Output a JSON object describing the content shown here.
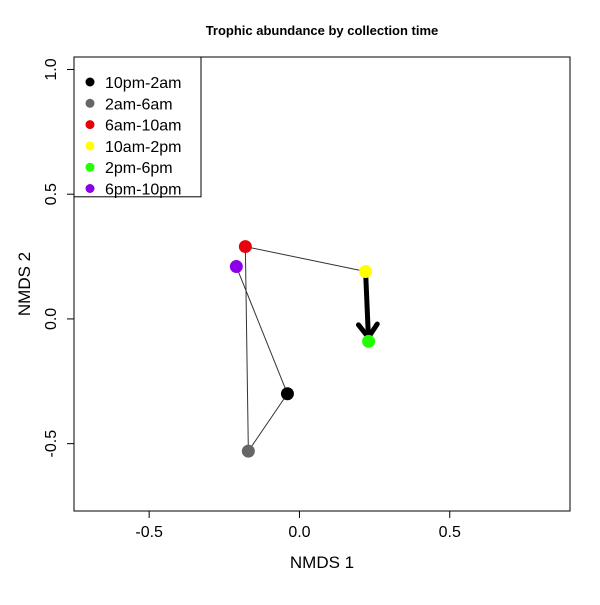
{
  "chart_data": {
    "type": "scatter",
    "title": "Trophic abundance by collection time",
    "xlabel": "NMDS 1",
    "ylabel": "NMDS 2",
    "xlim": [
      -0.75,
      0.9
    ],
    "ylim": [
      -0.77,
      1.05
    ],
    "xticks": [
      -0.5,
      0.0,
      0.5
    ],
    "yticks": [
      -0.5,
      0.0,
      0.5,
      1.0
    ],
    "xtick_labels": [
      "-0.5",
      "0.0",
      "0.5"
    ],
    "ytick_labels": [
      "-0.5",
      "0.0",
      "0.5",
      "1.0"
    ],
    "grid": false,
    "legend_position": "top-left",
    "points": [
      {
        "label": "10pm-2am",
        "x": -0.04,
        "y": -0.3,
        "color": "#000000"
      },
      {
        "label": "2am-6am",
        "x": -0.17,
        "y": -0.53,
        "color": "#666666"
      },
      {
        "label": "6am-10am",
        "x": -0.18,
        "y": 0.29,
        "color": "#e8000b"
      },
      {
        "label": "10am-2pm",
        "x": 0.22,
        "y": 0.19,
        "color": "#ffff00"
      },
      {
        "label": "2pm-6pm",
        "x": 0.23,
        "y": -0.09,
        "color": "#22ff00"
      },
      {
        "label": "6pm-10pm",
        "x": -0.21,
        "y": 0.21,
        "color": "#8b00e8"
      }
    ],
    "path_order": [
      "6pm-10pm",
      "10pm-2am",
      "2am-6am",
      "6am-10am",
      "10am-2pm"
    ],
    "arrow": {
      "from": "10am-2pm",
      "to": "2pm-6pm"
    }
  }
}
